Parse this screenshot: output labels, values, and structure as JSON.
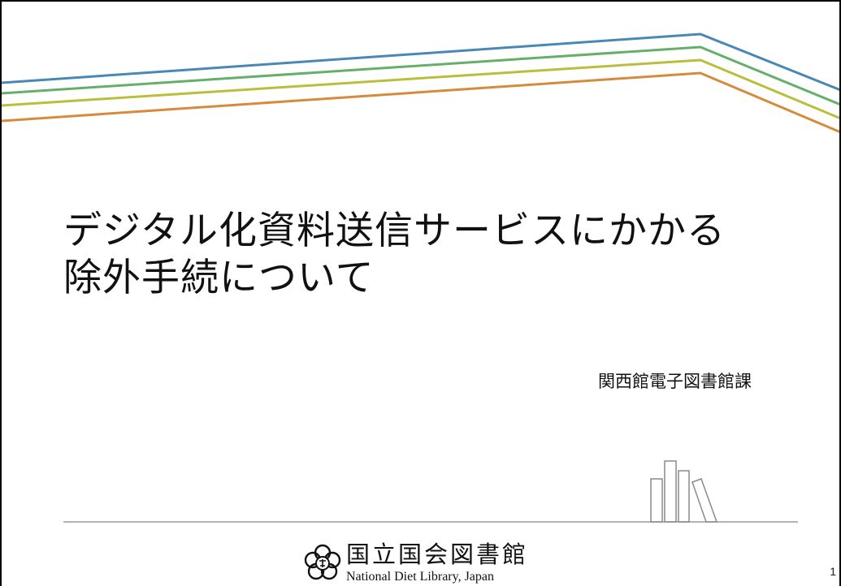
{
  "slide": {
    "title_line1": "デジタル化資料送信サービスにかかる",
    "title_line2": "除外手続について",
    "department": "関西館電子図書館課",
    "page_number": "1"
  },
  "logo": {
    "name_ja": "国立国会図書館",
    "name_en": "National Diet Library, Japan"
  },
  "colors": {
    "stripe_blue": "#4a88b4",
    "stripe_green": "#64b06a",
    "stripe_yellow": "#b8bf3c",
    "stripe_orange": "#d88a3c",
    "line_gray": "#9a9a9a",
    "text": "#111111"
  },
  "icons": {
    "header_graphic": "color-stripes",
    "book_graphic": "books-outline-icon",
    "logo_mark": "ndl-emblem-icon"
  }
}
